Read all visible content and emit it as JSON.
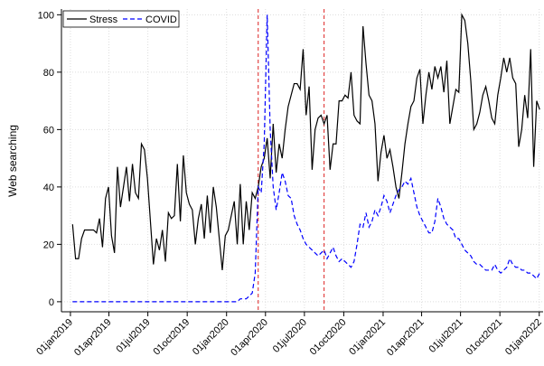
{
  "chart_data": {
    "type": "line",
    "y_label": "Web searching",
    "x": [
      "2019-01-06",
      "2019-01-13",
      "2019-01-20",
      "2019-01-27",
      "2019-02-03",
      "2019-02-10",
      "2019-02-17",
      "2019-02-24",
      "2019-03-03",
      "2019-03-10",
      "2019-03-17",
      "2019-03-24",
      "2019-03-31",
      "2019-04-07",
      "2019-04-14",
      "2019-04-21",
      "2019-04-28",
      "2019-05-05",
      "2019-05-12",
      "2019-05-19",
      "2019-05-26",
      "2019-06-02",
      "2019-06-09",
      "2019-06-16",
      "2019-06-23",
      "2019-06-30",
      "2019-07-07",
      "2019-07-14",
      "2019-07-21",
      "2019-07-28",
      "2019-08-04",
      "2019-08-11",
      "2019-08-18",
      "2019-08-25",
      "2019-09-01",
      "2019-09-08",
      "2019-09-15",
      "2019-09-22",
      "2019-09-29",
      "2019-10-06",
      "2019-10-13",
      "2019-10-20",
      "2019-10-27",
      "2019-11-03",
      "2019-11-10",
      "2019-11-17",
      "2019-11-24",
      "2019-12-01",
      "2019-12-08",
      "2019-12-15",
      "2019-12-22",
      "2019-12-29",
      "2020-01-05",
      "2020-01-12",
      "2020-01-19",
      "2020-01-26",
      "2020-02-02",
      "2020-02-09",
      "2020-02-16",
      "2020-02-23",
      "2020-03-01",
      "2020-03-08",
      "2020-03-15",
      "2020-03-22",
      "2020-03-29",
      "2020-04-05",
      "2020-04-12",
      "2020-04-19",
      "2020-04-26",
      "2020-05-03",
      "2020-05-10",
      "2020-05-17",
      "2020-05-24",
      "2020-05-31",
      "2020-06-07",
      "2020-06-14",
      "2020-06-21",
      "2020-06-28",
      "2020-07-05",
      "2020-07-12",
      "2020-07-19",
      "2020-07-26",
      "2020-08-02",
      "2020-08-09",
      "2020-08-16",
      "2020-08-23",
      "2020-08-30",
      "2020-09-06",
      "2020-09-13",
      "2020-09-20",
      "2020-09-27",
      "2020-10-04",
      "2020-10-11",
      "2020-10-18",
      "2020-10-25",
      "2020-11-01",
      "2020-11-08",
      "2020-11-15",
      "2020-11-22",
      "2020-11-29",
      "2020-12-06",
      "2020-12-13",
      "2020-12-20",
      "2020-12-27",
      "2021-01-03",
      "2021-01-10",
      "2021-01-17",
      "2021-01-24",
      "2021-01-31",
      "2021-02-07",
      "2021-02-14",
      "2021-02-21",
      "2021-02-28",
      "2021-03-07",
      "2021-03-14",
      "2021-03-21",
      "2021-03-28",
      "2021-04-04",
      "2021-04-11",
      "2021-04-18",
      "2021-04-25",
      "2021-05-02",
      "2021-05-09",
      "2021-05-16",
      "2021-05-23",
      "2021-05-30",
      "2021-06-06",
      "2021-06-13",
      "2021-06-20",
      "2021-06-27",
      "2021-07-04",
      "2021-07-11",
      "2021-07-18",
      "2021-07-25",
      "2021-08-01",
      "2021-08-08",
      "2021-08-15",
      "2021-08-22",
      "2021-08-29",
      "2021-09-05",
      "2021-09-12",
      "2021-09-19",
      "2021-09-26",
      "2021-10-03",
      "2021-10-10",
      "2021-10-17",
      "2021-10-24",
      "2021-10-31",
      "2021-11-07",
      "2021-11-14",
      "2021-11-21",
      "2021-11-28",
      "2021-12-05",
      "2021-12-12",
      "2021-12-19",
      "2021-12-26",
      "2022-01-02"
    ],
    "series": [
      {
        "name": "Stress",
        "color": "#000000",
        "dash": false,
        "values": [
          27,
          15,
          15,
          22,
          25,
          25,
          25,
          25,
          24,
          29,
          19,
          36,
          40,
          23,
          17,
          47,
          33,
          40,
          47,
          35,
          48,
          38,
          36,
          55,
          53,
          43,
          28,
          13,
          22,
          18,
          25,
          14,
          31,
          29,
          30,
          48,
          28,
          51,
          38,
          34,
          32,
          20,
          29,
          34,
          22,
          37,
          24,
          40,
          33,
          22,
          11,
          23,
          25,
          30,
          35,
          20,
          41,
          20,
          35,
          25,
          38,
          36,
          40,
          47,
          50,
          57,
          43,
          62,
          45,
          55,
          50,
          60,
          68,
          72,
          76,
          76,
          74,
          88,
          65,
          75,
          46,
          60,
          64,
          65,
          62,
          65,
          46,
          55,
          55,
          70,
          70,
          72,
          71,
          80,
          65,
          63,
          62,
          96,
          83,
          72,
          70,
          62,
          42,
          52,
          58,
          50,
          53,
          47,
          40,
          36,
          45,
          55,
          62,
          68,
          70,
          78,
          81,
          62,
          72,
          80,
          74,
          82,
          78,
          82,
          73,
          84,
          62,
          68,
          74,
          73,
          100,
          98,
          90,
          77,
          60,
          62,
          66,
          72,
          75,
          70,
          64,
          62,
          72,
          78,
          85,
          80,
          85,
          78,
          76,
          54,
          60,
          72,
          64,
          88,
          47,
          70,
          67
        ]
      },
      {
        "name": "COVID",
        "color": "#0000ff",
        "dash": true,
        "values": [
          0,
          0,
          0,
          0,
          0,
          0,
          0,
          0,
          0,
          0,
          0,
          0,
          0,
          0,
          0,
          0,
          0,
          0,
          0,
          0,
          0,
          0,
          0,
          0,
          0,
          0,
          0,
          0,
          0,
          0,
          0,
          0,
          0,
          0,
          0,
          0,
          0,
          0,
          0,
          0,
          0,
          0,
          0,
          0,
          0,
          0,
          0,
          0,
          0,
          0,
          0,
          0,
          0,
          0,
          0,
          0,
          1,
          1,
          1,
          2,
          3,
          10,
          40,
          38,
          55,
          100,
          60,
          40,
          32,
          38,
          45,
          42,
          37,
          36,
          30,
          27,
          25,
          22,
          20,
          19,
          18,
          17,
          16,
          17,
          18,
          15,
          17,
          19,
          16,
          14,
          15,
          14,
          13,
          12,
          14,
          20,
          27,
          26,
          31,
          26,
          28,
          32,
          30,
          33,
          37,
          35,
          31,
          34,
          37,
          39,
          40,
          42,
          41,
          43,
          38,
          33,
          30,
          28,
          26,
          24,
          24,
          28,
          36,
          33,
          29,
          27,
          26,
          25,
          22,
          22,
          20,
          18,
          17,
          16,
          14,
          13,
          13,
          12,
          11,
          11,
          11,
          13,
          11,
          10,
          11,
          12,
          15,
          13,
          12,
          12,
          11,
          11,
          10,
          10,
          9,
          8,
          10
        ]
      }
    ],
    "vlines": [
      "2020-03-15",
      "2020-08-16"
    ],
    "vline_color": "#dd2222",
    "xlim": [
      "2018-12-11",
      "2022-01-10"
    ],
    "xticks": [
      {
        "value": "2019-01-01",
        "label": "01jan2019"
      },
      {
        "value": "2019-04-01",
        "label": "01apr2019"
      },
      {
        "value": "2019-07-01",
        "label": "01jul2019"
      },
      {
        "value": "2019-10-01",
        "label": "01oct2019"
      },
      {
        "value": "2020-01-01",
        "label": "01jan2020"
      },
      {
        "value": "2020-04-01",
        "label": "01apr2020"
      },
      {
        "value": "2020-07-01",
        "label": "01jul2020"
      },
      {
        "value": "2020-10-01",
        "label": "01oct2020"
      },
      {
        "value": "2021-01-01",
        "label": "01jan2021"
      },
      {
        "value": "2021-04-01",
        "label": "01apr2021"
      },
      {
        "value": "2021-07-01",
        "label": "01jul2021"
      },
      {
        "value": "2021-10-01",
        "label": "01oct2021"
      },
      {
        "value": "2022-01-01",
        "label": "01jan2022"
      }
    ],
    "ylim": [
      -3.5,
      102
    ],
    "yticks": [
      0,
      20,
      40,
      60,
      80,
      100
    ],
    "grid": true,
    "legend": "upper-left"
  }
}
